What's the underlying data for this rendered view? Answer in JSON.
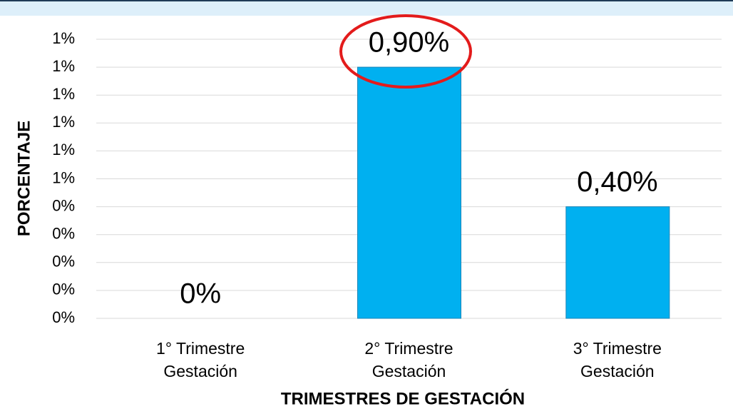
{
  "chart_data": {
    "type": "bar",
    "x_label": "TRIMESTRES DE GESTACIÓN",
    "y_label": "PORCENTAJE",
    "categories": [
      "1° Trimestre\nGestación",
      "2° Trimestre\nGestación",
      "3° Trimestre\nGestación"
    ],
    "values": [
      0,
      0.9,
      0.4
    ],
    "value_labels": [
      "0%",
      "0,90%",
      "0,40%"
    ],
    "color": "#00b0f0",
    "ylim": [
      0,
      1.0
    ],
    "yticks": [
      {
        "value": 0,
        "label": "0%"
      },
      {
        "value": 0.1,
        "label": "0%"
      },
      {
        "value": 0.2,
        "label": "0%"
      },
      {
        "value": 0.3,
        "label": "0%"
      },
      {
        "value": 0.4,
        "label": "0%"
      },
      {
        "value": 0.5,
        "label": "1%"
      },
      {
        "value": 0.6,
        "label": "1%"
      },
      {
        "value": 0.7,
        "label": "1%"
      },
      {
        "value": 0.8,
        "label": "1%"
      },
      {
        "value": 0.9,
        "label": "1%"
      },
      {
        "value": 1.0,
        "label": "1%"
      }
    ],
    "grid": true
  }
}
